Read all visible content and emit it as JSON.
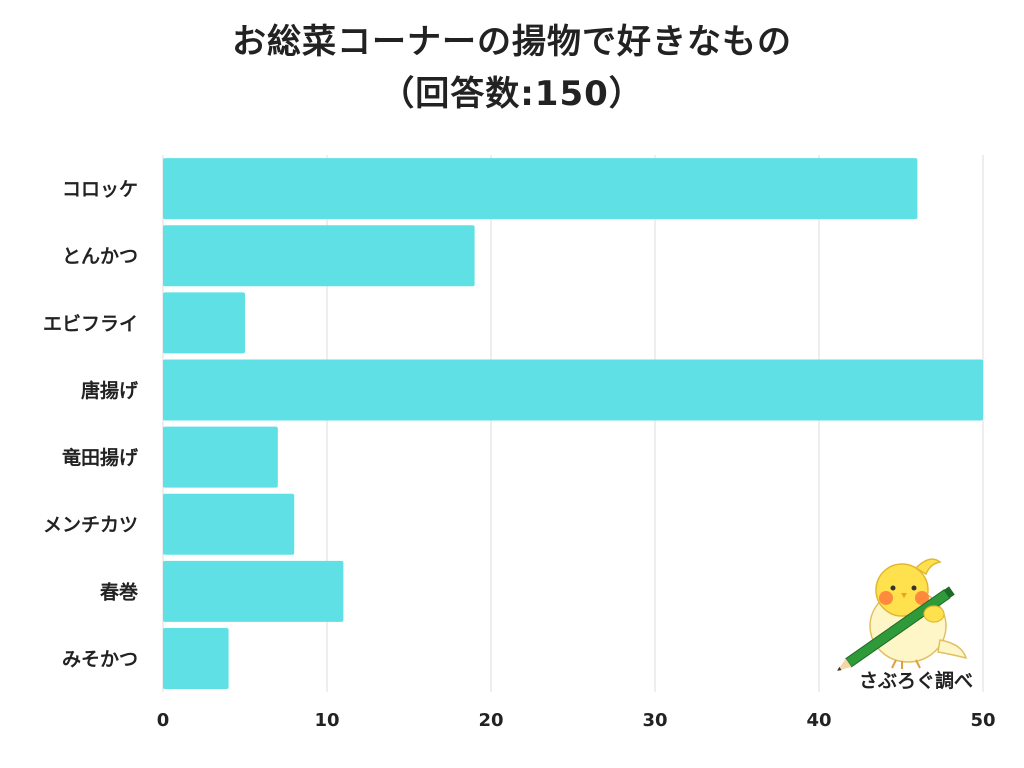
{
  "title": {
    "line1": "お総菜コーナーの揚物で好きなもの",
    "line2": "（回答数:150）"
  },
  "chart_data": {
    "type": "bar",
    "orientation": "horizontal",
    "categories": [
      "コロッケ",
      "とんかつ",
      "エビフライ",
      "唐揚げ",
      "竜田揚げ",
      "メンチカツ",
      "春巻",
      "みそかつ"
    ],
    "values": [
      46,
      19,
      5,
      50,
      7,
      8,
      11,
      4
    ],
    "xlim": [
      0,
      50
    ],
    "xticks": [
      0,
      10,
      20,
      30,
      40,
      50
    ],
    "grid": true,
    "legend": "none",
    "bar_color": "#5ee0e4"
  },
  "credit": {
    "label": "さぶろぐ調べ"
  },
  "colors": {
    "bar": "#5ee0e4",
    "grid": "#dddddd",
    "text": "#222222"
  }
}
